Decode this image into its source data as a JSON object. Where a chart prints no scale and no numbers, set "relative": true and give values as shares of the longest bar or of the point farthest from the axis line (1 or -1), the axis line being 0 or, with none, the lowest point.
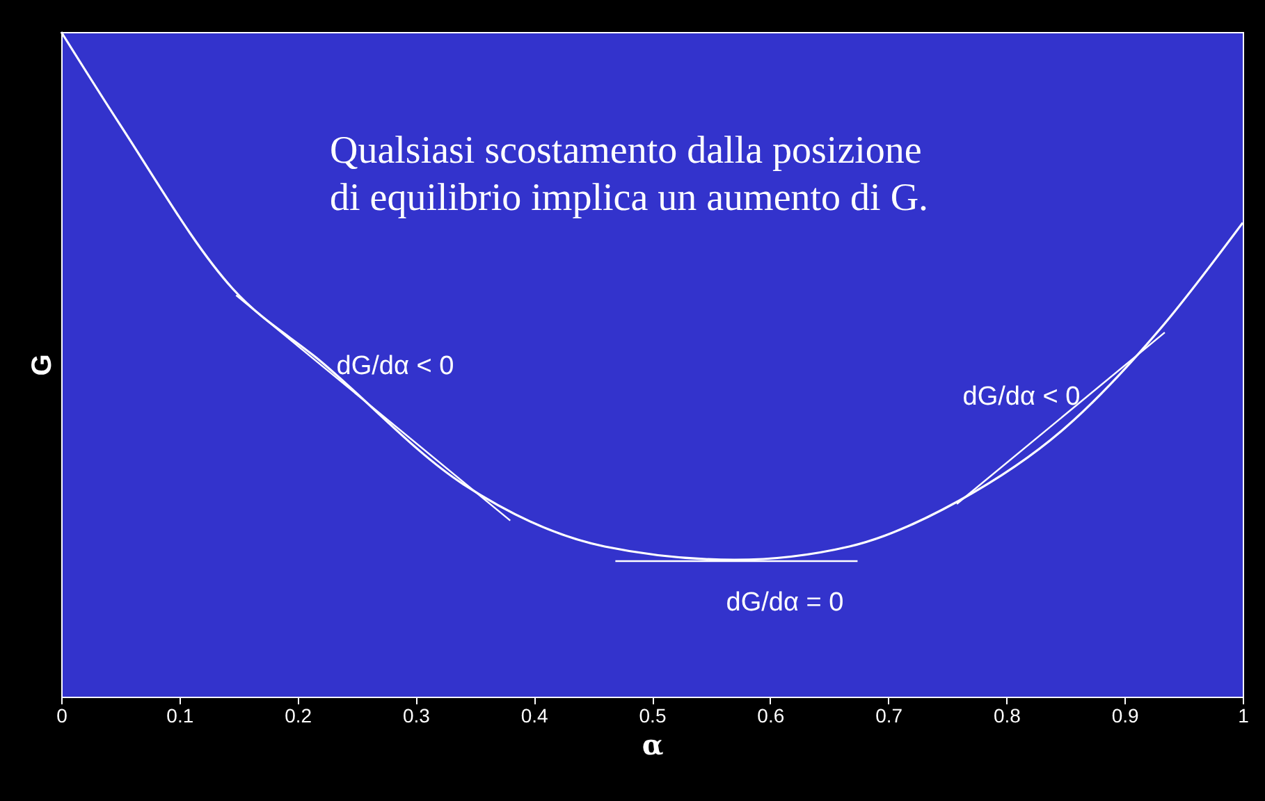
{
  "chart_data": {
    "type": "line",
    "relative": true,
    "xlabel": "α",
    "ylabel": "G",
    "xlim": [
      0,
      1
    ],
    "xticks": [
      0,
      0.1,
      0.2,
      0.3,
      0.4,
      0.5,
      0.6,
      0.7,
      0.8,
      0.9,
      1
    ],
    "grid": false,
    "marker": "none",
    "line_style": "solid",
    "series": [
      {
        "color": "#ffffff",
        "x": [
          0,
          0.05,
          0.145,
          0.22,
          0.34,
          0.46,
          0.57,
          0.667,
          0.76,
          0.85,
          0.93,
          1
        ],
        "values": [
          1.0,
          0.86,
          0.614,
          0.504,
          0.32,
          0.226,
          0.206,
          0.226,
          0.295,
          0.405,
          0.553,
          0.713
        ]
      },
      {
        "color": "#ffffff",
        "x": [
          0.148,
          0.38
        ],
        "values": [
          0.604,
          0.265
        ]
      },
      {
        "color": "#ffffff",
        "x": [
          0.469,
          0.674
        ],
        "values": [
          0.204,
          0.204
        ]
      },
      {
        "color": "#ffffff",
        "x": [
          0.758,
          0.934
        ],
        "values": [
          0.29,
          0.548
        ]
      }
    ],
    "annotations": [
      "Qualsiasi scostamento dalla posizione\ndi equilibrio implica un aumento di G.",
      "dG/dα < 0",
      "dG/dα = 0",
      "dG/dα < 0"
    ]
  }
}
